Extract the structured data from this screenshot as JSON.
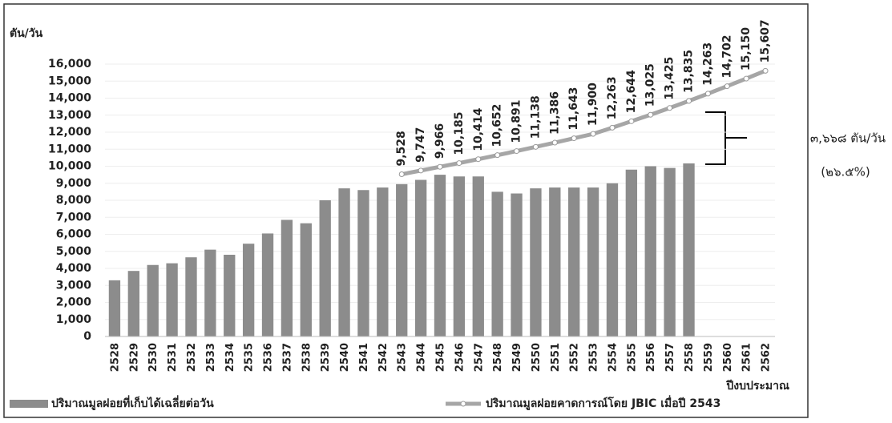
{
  "chart_data": {
    "type": "bar-line",
    "y_axis_label": "ตัน/วัน",
    "x_axis_label": "ปีงบประมาณ",
    "categories": [
      "2528",
      "2529",
      "2530",
      "2531",
      "2532",
      "2533",
      "2534",
      "2535",
      "2536",
      "2537",
      "2538",
      "2539",
      "2540",
      "2541",
      "2542",
      "2543",
      "2544",
      "2545",
      "2546",
      "2547",
      "2548",
      "2549",
      "2550",
      "2551",
      "2552",
      "2553",
      "2554",
      "2555",
      "2556",
      "2557",
      "2558",
      "2559",
      "2560",
      "2561",
      "2562"
    ],
    "series": [
      {
        "name": "ปริมาณมูลฝอยที่เก็บได้เฉลี่ยต่อวัน",
        "type": "bar",
        "color": "#8c8c8c",
        "values": [
          3300,
          3850,
          4200,
          4300,
          4650,
          5100,
          4800,
          5450,
          6050,
          6850,
          6650,
          8000,
          8700,
          8600,
          8750,
          8950,
          9200,
          9500,
          9400,
          9400,
          8500,
          8400,
          8700,
          8750,
          8750,
          8750,
          9000,
          9800,
          10000,
          9900,
          10167,
          null,
          null,
          null,
          null
        ]
      },
      {
        "name": "ปริมาณมูลฝอยคาดการณ์โดย JBIC เมื่อปี 2543",
        "type": "line",
        "color": "#a6a6a6",
        "values": [
          null,
          null,
          null,
          null,
          null,
          null,
          null,
          null,
          null,
          null,
          null,
          null,
          null,
          null,
          null,
          9528,
          9747,
          9966,
          10185,
          10414,
          10652,
          10891,
          11138,
          11386,
          11643,
          11900,
          12263,
          12644,
          13025,
          13425,
          13835,
          14263,
          14702,
          15150,
          15607
        ],
        "value_labels": [
          null,
          null,
          null,
          null,
          null,
          null,
          null,
          null,
          null,
          null,
          null,
          null,
          null,
          null,
          null,
          "9,528",
          "9,747",
          "9,966",
          "10,185",
          "10,414",
          "10,652",
          "10,891",
          "11,138",
          "11,386",
          "11,643",
          "11,900",
          "12,263",
          "12,644",
          "13,025",
          "13,425",
          "13,835",
          "14,263",
          "14,702",
          "15,150",
          "15,607"
        ]
      }
    ],
    "ylim": [
      0,
      17000
    ],
    "yticks": [
      0,
      {
        "value": 1000,
        "label": "1,000"
      },
      {
        "value": 2000,
        "label": "2,000"
      },
      {
        "value": 3000,
        "label": "3,000"
      },
      {
        "value": 4000,
        "label": "4,000"
      },
      {
        "value": 5000,
        "label": "5,000"
      },
      {
        "value": 6000,
        "label": "6,000"
      },
      {
        "value": 7000,
        "label": "7,000"
      },
      {
        "value": 8000,
        "label": "8,000"
      },
      {
        "value": 9000,
        "label": "9,000"
      },
      {
        "value": 10000,
        "label": "10,000"
      },
      {
        "value": 11000,
        "label": "11,000"
      },
      {
        "value": 12000,
        "label": "12,000"
      },
      {
        "value": 13000,
        "label": "13,000"
      },
      {
        "value": 14000,
        "label": "14,000"
      },
      {
        "value": 15000,
        "label": "15,000"
      },
      {
        "value": 16000,
        "label": "16,000"
      }
    ],
    "grid": true,
    "annotation": "๓,๖๖๘ ตัน/วัน",
    "annotation_percent": "(๒๖.๕%)"
  }
}
